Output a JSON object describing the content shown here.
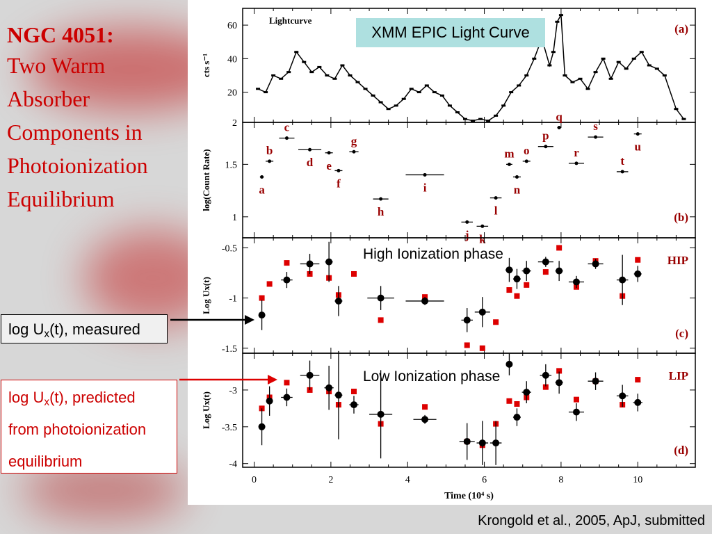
{
  "slide": {
    "title_main": "NGC 4051:",
    "title_lines": [
      "Two Warm",
      "Absorber",
      "Components in",
      "Photoionization",
      "Equilibrium"
    ],
    "measured_label": {
      "prefix": "log U",
      "sub": "x",
      "suffix": "(t), measured"
    },
    "predicted_label": {
      "prefix": "log U",
      "sub": "x",
      "line1_suffix": "(t), predicted",
      "line2": "from photoionization",
      "line3": "equilibrium"
    },
    "xmm_label": "XMM EPIC Light Curve",
    "hip_phase_label": "High Ionization phase",
    "lip_phase_label": "Low Ionization phase",
    "citation": "Krongold et al., 2005, ApJ, submitted",
    "colors": {
      "title": "#cc0000",
      "predicted": "#dd0000",
      "measured": "#000000",
      "xmm_box": "#aee0e0",
      "panel_letters": "#990000"
    }
  },
  "chart_data": [
    {
      "panel": "a",
      "type": "line",
      "title": "Lightcurve",
      "ylabel": "cts s⁻¹",
      "xlim": [
        -0.3,
        11.5
      ],
      "ylim": [
        2,
        70
      ],
      "yticks": [
        2,
        20,
        40,
        60
      ],
      "panel_label": "(a)",
      "x": [
        0.1,
        0.3,
        0.5,
        0.7,
        0.9,
        1.1,
        1.3,
        1.5,
        1.7,
        1.9,
        2.1,
        2.3,
        2.5,
        2.7,
        2.9,
        3.1,
        3.3,
        3.5,
        3.7,
        3.9,
        4.1,
        4.3,
        4.5,
        4.7,
        4.9,
        5.1,
        5.3,
        5.5,
        5.7,
        5.9,
        6.1,
        6.3,
        6.5,
        6.7,
        6.9,
        7.1,
        7.3,
        7.5,
        7.7,
        7.8,
        7.9,
        8.0,
        8.1,
        8.3,
        8.5,
        8.7,
        8.9,
        9.1,
        9.3,
        9.5,
        9.7,
        9.9,
        10.1,
        10.3,
        10.5,
        10.7,
        11.0,
        11.2
      ],
      "y": [
        22,
        20,
        30,
        28,
        32,
        44,
        38,
        32,
        35,
        30,
        28,
        36,
        30,
        26,
        22,
        18,
        14,
        10,
        12,
        16,
        22,
        20,
        24,
        20,
        18,
        12,
        8,
        4,
        3,
        4,
        3,
        6,
        12,
        20,
        24,
        30,
        40,
        52,
        36,
        44,
        62,
        66,
        30,
        26,
        28,
        22,
        32,
        40,
        28,
        38,
        34,
        40,
        44,
        36,
        34,
        30,
        10,
        4
      ]
    },
    {
      "panel": "b",
      "type": "scatter",
      "ylabel": "log(Count Rate)",
      "xlim": [
        -0.3,
        11.5
      ],
      "ylim": [
        0.8,
        1.9
      ],
      "yticks": [
        1,
        1.5
      ],
      "panel_label": "(b)",
      "points": [
        {
          "x": 0.2,
          "y": 1.38,
          "xerr": 0.05,
          "label": "a"
        },
        {
          "x": 0.4,
          "y": 1.53,
          "xerr": 0.1,
          "label": "b"
        },
        {
          "x": 0.85,
          "y": 1.75,
          "xerr": 0.2,
          "label": "c"
        },
        {
          "x": 1.45,
          "y": 1.64,
          "xerr": 0.3,
          "label": "d"
        },
        {
          "x": 1.95,
          "y": 1.61,
          "xerr": 0.1,
          "label": "e"
        },
        {
          "x": 2.2,
          "y": 1.44,
          "xerr": 0.1,
          "label": "f"
        },
        {
          "x": 2.6,
          "y": 1.62,
          "xerr": 0.12,
          "label": "g"
        },
        {
          "x": 3.3,
          "y": 1.17,
          "xerr": 0.2,
          "label": "h"
        },
        {
          "x": 4.45,
          "y": 1.4,
          "xerr": 0.5,
          "label": "i"
        },
        {
          "x": 5.55,
          "y": 0.95,
          "xerr": 0.15,
          "label": "j"
        },
        {
          "x": 5.95,
          "y": 0.91,
          "xerr": 0.15,
          "label": "k"
        },
        {
          "x": 6.3,
          "y": 1.18,
          "xerr": 0.15,
          "label": "l"
        },
        {
          "x": 6.65,
          "y": 1.5,
          "xerr": 0.08,
          "label": "m"
        },
        {
          "x": 6.85,
          "y": 1.38,
          "xerr": 0.1,
          "label": "n"
        },
        {
          "x": 7.1,
          "y": 1.53,
          "xerr": 0.1,
          "label": "o"
        },
        {
          "x": 7.6,
          "y": 1.67,
          "xerr": 0.2,
          "label": "p"
        },
        {
          "x": 7.95,
          "y": 1.85,
          "xerr": 0.05,
          "label": "q"
        },
        {
          "x": 8.4,
          "y": 1.51,
          "xerr": 0.2,
          "label": "r"
        },
        {
          "x": 8.9,
          "y": 1.76,
          "xerr": 0.2,
          "label": "s"
        },
        {
          "x": 9.6,
          "y": 1.43,
          "xerr": 0.15,
          "label": "t"
        },
        {
          "x": 10.0,
          "y": 1.79,
          "xerr": 0.1,
          "label": "u"
        }
      ]
    },
    {
      "panel": "c",
      "type": "scatter",
      "ylabel": "Log Ux(t)",
      "xlim": [
        -0.3,
        11.5
      ],
      "ylim": [
        -1.55,
        -0.4
      ],
      "yticks": [
        -1.5,
        -1,
        -0.5
      ],
      "panel_label": "(c)",
      "corner_label": "HIP",
      "measured": [
        {
          "x": 0.2,
          "y": -1.17,
          "xerr": 0.08,
          "yerr": 0.15
        },
        {
          "x": 0.85,
          "y": -0.82,
          "xerr": 0.15,
          "yerr": 0.08
        },
        {
          "x": 1.45,
          "y": -0.66,
          "xerr": 0.25,
          "yerr": 0.1
        },
        {
          "x": 1.95,
          "y": -0.64,
          "xerr": 0.1,
          "yerr": 0.2
        },
        {
          "x": 2.2,
          "y": -1.03,
          "xerr": 0.1,
          "yerr": 0.15
        },
        {
          "x": 3.3,
          "y": -1.0,
          "xerr": 0.35,
          "yerr": 0.12
        },
        {
          "x": 4.45,
          "y": -1.03,
          "xerr": 0.5,
          "yerr": 0.04
        },
        {
          "x": 5.55,
          "y": -1.22,
          "xerr": 0.15,
          "yerr": 0.12
        },
        {
          "x": 5.95,
          "y": -1.14,
          "xerr": 0.2,
          "yerr": 0.15
        },
        {
          "x": 6.65,
          "y": -0.72,
          "xerr": 0.1,
          "yerr": 0.12
        },
        {
          "x": 6.85,
          "y": -0.81,
          "xerr": 0.1,
          "yerr": 0.1
        },
        {
          "x": 7.1,
          "y": -0.73,
          "xerr": 0.12,
          "yerr": 0.1
        },
        {
          "x": 7.6,
          "y": -0.64,
          "xerr": 0.2,
          "yerr": 0.05
        },
        {
          "x": 7.95,
          "y": -0.73,
          "xerr": 0.1,
          "yerr": 0.1
        },
        {
          "x": 8.4,
          "y": -0.84,
          "xerr": 0.2,
          "yerr": 0.06
        },
        {
          "x": 8.9,
          "y": -0.66,
          "xerr": 0.2,
          "yerr": 0.05
        },
        {
          "x": 9.6,
          "y": -0.82,
          "xerr": 0.15,
          "yerr": 0.25
        },
        {
          "x": 10.0,
          "y": -0.76,
          "xerr": 0.1,
          "yerr": 0.08
        }
      ],
      "predicted": [
        {
          "x": 0.2,
          "y": -1.0
        },
        {
          "x": 0.4,
          "y": -0.86
        },
        {
          "x": 0.85,
          "y": -0.65
        },
        {
          "x": 1.45,
          "y": -0.76
        },
        {
          "x": 1.95,
          "y": -0.8
        },
        {
          "x": 2.2,
          "y": -0.97
        },
        {
          "x": 2.6,
          "y": -0.76
        },
        {
          "x": 3.3,
          "y": -1.22
        },
        {
          "x": 4.45,
          "y": -0.99
        },
        {
          "x": 5.55,
          "y": -1.47
        },
        {
          "x": 5.95,
          "y": -1.5
        },
        {
          "x": 6.3,
          "y": -1.24
        },
        {
          "x": 6.65,
          "y": -0.92
        },
        {
          "x": 6.85,
          "y": -0.98
        },
        {
          "x": 7.1,
          "y": -0.87
        },
        {
          "x": 7.6,
          "y": -0.74
        },
        {
          "x": 7.95,
          "y": -0.5
        },
        {
          "x": 8.4,
          "y": -0.89
        },
        {
          "x": 8.9,
          "y": -0.63
        },
        {
          "x": 9.6,
          "y": -0.98
        },
        {
          "x": 10.0,
          "y": -0.62
        }
      ]
    },
    {
      "panel": "d",
      "type": "scatter",
      "xlabel": "Time (10⁴ s)",
      "ylabel": "Log Ux(t)",
      "xlim": [
        -0.3,
        11.5
      ],
      "xticks": [
        0,
        2,
        4,
        6,
        8,
        10
      ],
      "ylim": [
        -4.05,
        -2.5
      ],
      "yticks": [
        -4,
        -3.5,
        -3
      ],
      "panel_label": "(d)",
      "corner_label": "LIP",
      "measured": [
        {
          "x": 0.2,
          "y": -3.5,
          "xerr": 0.08,
          "yerr": 0.25
        },
        {
          "x": 0.4,
          "y": -3.15,
          "xerr": 0.08,
          "yerr": 0.2
        },
        {
          "x": 0.85,
          "y": -3.1,
          "xerr": 0.15,
          "yerr": 0.12
        },
        {
          "x": 1.45,
          "y": -2.8,
          "xerr": 0.25,
          "yerr": 0.2
        },
        {
          "x": 1.95,
          "y": -2.97,
          "xerr": 0.12,
          "yerr": 0.3
        },
        {
          "x": 2.2,
          "y": -3.07,
          "xerr": 0.1,
          "yerr": 0.6
        },
        {
          "x": 2.6,
          "y": -3.2,
          "xerr": 0.12,
          "yerr": 0.12
        },
        {
          "x": 3.3,
          "y": -3.33,
          "xerr": 0.3,
          "yerr": 0.6
        },
        {
          "x": 4.45,
          "y": -3.4,
          "xerr": 0.3,
          "yerr": 0.06
        },
        {
          "x": 5.55,
          "y": -3.7,
          "xerr": 0.2,
          "yerr": 0.25
        },
        {
          "x": 5.95,
          "y": -3.72,
          "xerr": 0.15,
          "yerr": 0.3
        },
        {
          "x": 6.3,
          "y": -3.72,
          "xerr": 0.15,
          "yerr": 0.3
        },
        {
          "x": 6.65,
          "y": -2.65,
          "xerr": 0.08,
          "yerr": 0.15
        },
        {
          "x": 6.85,
          "y": -3.37,
          "xerr": 0.1,
          "yerr": 0.12
        },
        {
          "x": 7.1,
          "y": -3.03,
          "xerr": 0.12,
          "yerr": 0.15
        },
        {
          "x": 7.6,
          "y": -2.8,
          "xerr": 0.15,
          "yerr": 0.15
        },
        {
          "x": 7.95,
          "y": -2.9,
          "xerr": 0.1,
          "yerr": 0.15
        },
        {
          "x": 8.4,
          "y": -3.3,
          "xerr": 0.2,
          "yerr": 0.12
        },
        {
          "x": 8.9,
          "y": -2.88,
          "xerr": 0.2,
          "yerr": 0.12
        },
        {
          "x": 9.6,
          "y": -3.08,
          "xerr": 0.15,
          "yerr": 0.15
        },
        {
          "x": 10.0,
          "y": -3.17,
          "xerr": 0.12,
          "yerr": 0.12
        }
      ],
      "predicted": [
        {
          "x": 0.2,
          "y": -3.25
        },
        {
          "x": 0.4,
          "y": -3.1
        },
        {
          "x": 0.85,
          "y": -2.9
        },
        {
          "x": 1.45,
          "y": -3.0
        },
        {
          "x": 1.95,
          "y": -3.02
        },
        {
          "x": 2.2,
          "y": -3.2
        },
        {
          "x": 2.6,
          "y": -3.02
        },
        {
          "x": 3.3,
          "y": -3.46
        },
        {
          "x": 4.45,
          "y": -3.23
        },
        {
          "x": 5.55,
          "y": -3.7
        },
        {
          "x": 5.95,
          "y": -3.75
        },
        {
          "x": 6.3,
          "y": -3.46
        },
        {
          "x": 6.65,
          "y": -3.15
        },
        {
          "x": 6.85,
          "y": -3.19
        },
        {
          "x": 7.1,
          "y": -3.1
        },
        {
          "x": 7.6,
          "y": -2.96
        },
        {
          "x": 7.95,
          "y": -2.74
        },
        {
          "x": 8.4,
          "y": -3.13
        },
        {
          "x": 8.9,
          "y": -2.88
        },
        {
          "x": 9.6,
          "y": -3.2
        },
        {
          "x": 10.0,
          "y": -2.86
        }
      ]
    }
  ]
}
